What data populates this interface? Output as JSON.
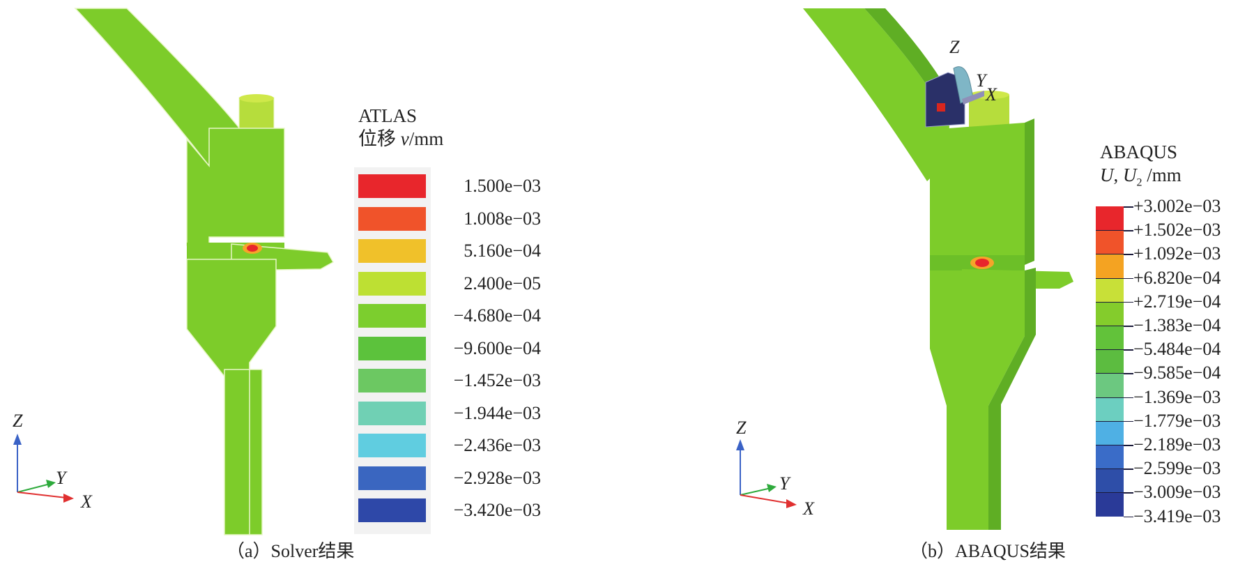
{
  "panel_a": {
    "legend_title_line1": "ATLAS",
    "legend_title_line2_prefix": "位移 ",
    "legend_title_line2_var": "v",
    "legend_title_line2_unit": "/mm",
    "legend_values": [
      "1.500e−03",
      "1.008e−03",
      "5.160e−04",
      "2.400e−05",
      "−4.680e−04",
      "−9.600e−04",
      "−1.452e−03",
      "−1.944e−03",
      "−2.436e−03",
      "−2.928e−03",
      "−3.420e−03"
    ],
    "legend_colors": [
      "#e8262c",
      "#f0532a",
      "#f0c12a",
      "#bde033",
      "#7cce2e",
      "#5cc23c",
      "#6cc862",
      "#70d0b4",
      "#60cde0",
      "#3a66c0",
      "#2e48a8"
    ],
    "axis_labels": {
      "z": "Z",
      "y": "Y",
      "x": "X"
    },
    "caption": "（a）Solver结果"
  },
  "panel_b": {
    "legend_title_line1": "ABAQUS",
    "legend_title_line2_u": "U",
    "legend_title_line2_sep": ", ",
    "legend_title_line2_u2": "U",
    "legend_title_line2_sub": "2",
    "legend_title_line2_unit": " /mm",
    "legend_values": [
      "+3.002e−03",
      "+1.502e−03",
      "+1.092e−03",
      "+6.820e−04",
      "+2.719e−04",
      "−1.383e−04",
      "−5.484e−04",
      "−9.585e−04",
      "−1.369e−03",
      "−1.779e−03",
      "−2.189e−03",
      "−2.599e−03",
      "−3.009e−03",
      "−3.419e−03"
    ],
    "legend_colors": [
      "#e8262c",
      "#f0532a",
      "#f4a322",
      "#c8e038",
      "#84cc2c",
      "#62c23a",
      "#5cbc40",
      "#6cc880",
      "#6ccfc0",
      "#4fb0e4",
      "#3a6cc8",
      "#2e4ea8",
      "#2a3a98"
    ],
    "axis_labels": {
      "z": "Z",
      "y": "Y",
      "x": "X"
    },
    "triad_labels": {
      "z": "Z",
      "y": "Y",
      "x": "X"
    },
    "caption": "（b）ABAQUS结果"
  },
  "colors": {
    "model_green": "#7dcc2a",
    "model_dark_green": "#5fae24",
    "edge": "#e8f7c8",
    "axis_z": "#3a62c6",
    "axis_y": "#2eaa3c",
    "axis_x": "#e03030"
  }
}
